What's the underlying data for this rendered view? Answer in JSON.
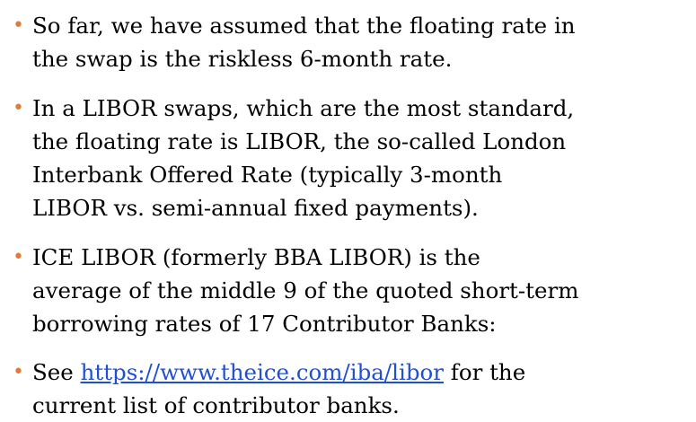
{
  "bullets": [
    {
      "lines": [
        "So far, we have assumed that the floating rate in",
        "the swap is the riskless 6-month rate."
      ]
    },
    {
      "lines": [
        "In a LIBOR swaps, which are the most standard,",
        "the floating rate is LIBOR, the so-called London",
        "Interbank Offered Rate (typically 3-month",
        "LIBOR vs. semi-annual fixed payments)."
      ]
    },
    {
      "lines": [
        "ICE LIBOR (formerly BBA LIBOR) is the",
        "average of the middle 9 of the quoted short-term",
        "borrowing rates of 17 Contributor Banks:"
      ]
    },
    {
      "lines": [
        "See ",
        "current list of contributor banks."
      ],
      "link": "https://www.theice.com/iba/libor",
      "after_link": " for the"
    }
  ]
}
